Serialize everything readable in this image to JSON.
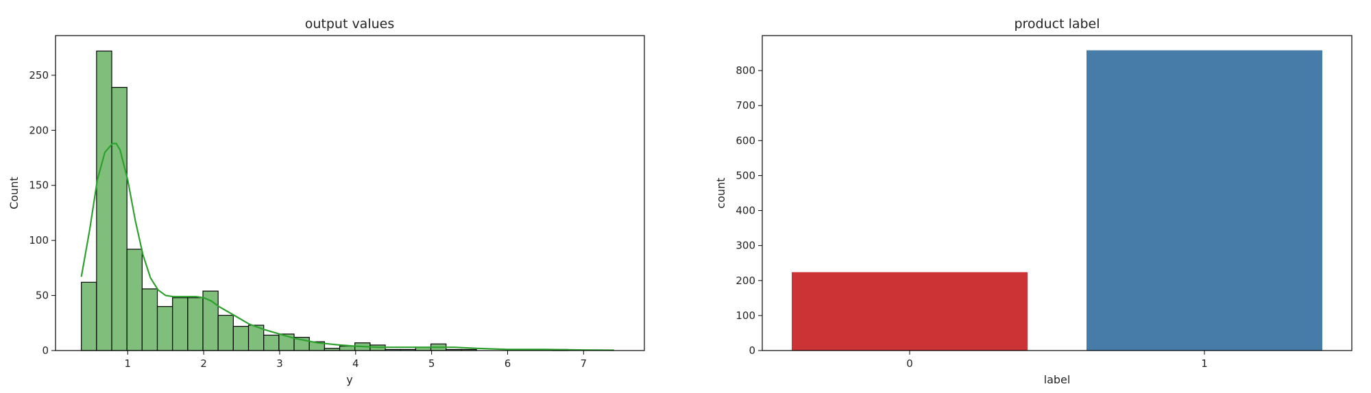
{
  "chart_data": [
    {
      "type": "bar",
      "subtype": "histogram",
      "title": "output values",
      "xlabel": "y",
      "ylabel": "Count",
      "xlim": [
        0.05,
        7.8
      ],
      "ylim": [
        0,
        286
      ],
      "xticks": [
        "1",
        "2",
        "3",
        "4",
        "5",
        "6",
        "7"
      ],
      "yticks": [
        "0",
        "50",
        "100",
        "150",
        "200",
        "250"
      ],
      "bar_color": "#7fbf7b",
      "edge_color": "#000000",
      "kde_color": "#2ca02c",
      "bins": [
        {
          "x0": 0.39,
          "x1": 0.59,
          "count": 62
        },
        {
          "x0": 0.59,
          "x1": 0.79,
          "count": 272
        },
        {
          "x0": 0.79,
          "x1": 0.99,
          "count": 239
        },
        {
          "x0": 0.99,
          "x1": 1.19,
          "count": 92
        },
        {
          "x0": 1.19,
          "x1": 1.39,
          "count": 56
        },
        {
          "x0": 1.39,
          "x1": 1.59,
          "count": 40
        },
        {
          "x0": 1.59,
          "x1": 1.79,
          "count": 48
        },
        {
          "x0": 1.79,
          "x1": 1.99,
          "count": 48
        },
        {
          "x0": 1.99,
          "x1": 2.19,
          "count": 54
        },
        {
          "x0": 2.19,
          "x1": 2.39,
          "count": 32
        },
        {
          "x0": 2.39,
          "x1": 2.59,
          "count": 22
        },
        {
          "x0": 2.59,
          "x1": 2.79,
          "count": 23
        },
        {
          "x0": 2.79,
          "x1": 2.99,
          "count": 14
        },
        {
          "x0": 2.99,
          "x1": 3.19,
          "count": 15
        },
        {
          "x0": 3.19,
          "x1": 3.39,
          "count": 12
        },
        {
          "x0": 3.39,
          "x1": 3.59,
          "count": 8
        },
        {
          "x0": 3.59,
          "x1": 3.79,
          "count": 2
        },
        {
          "x0": 3.79,
          "x1": 3.99,
          "count": 4
        },
        {
          "x0": 3.99,
          "x1": 4.19,
          "count": 7
        },
        {
          "x0": 4.19,
          "x1": 4.39,
          "count": 5
        },
        {
          "x0": 4.39,
          "x1": 4.59,
          "count": 1
        },
        {
          "x0": 4.59,
          "x1": 4.79,
          "count": 1
        },
        {
          "x0": 4.79,
          "x1": 4.99,
          "count": 3
        },
        {
          "x0": 4.99,
          "x1": 5.19,
          "count": 6
        },
        {
          "x0": 5.19,
          "x1": 5.39,
          "count": 1
        },
        {
          "x0": 5.39,
          "x1": 5.59,
          "count": 1
        },
        {
          "x0": 6.59,
          "x1": 6.79,
          "count": 1
        }
      ],
      "kde": {
        "x": [
          0.39,
          0.5,
          0.6,
          0.7,
          0.8,
          0.85,
          0.9,
          1.0,
          1.1,
          1.2,
          1.3,
          1.4,
          1.5,
          1.6,
          1.7,
          1.8,
          1.9,
          2.0,
          2.1,
          2.2,
          2.4,
          2.6,
          2.8,
          3.0,
          3.2,
          3.5,
          3.8,
          4.0,
          4.3,
          4.6,
          5.0,
          5.3,
          5.6,
          6.0,
          6.5,
          7.0,
          7.4
        ],
        "y": [
          67,
          110,
          155,
          180,
          188,
          188,
          182,
          155,
          118,
          87,
          66,
          55,
          50,
          49,
          49,
          49,
          49,
          48,
          45,
          40,
          32,
          24,
          19,
          15,
          11,
          7,
          5,
          4,
          3,
          3,
          3,
          3,
          2,
          1,
          1,
          0.5,
          0.3
        ]
      }
    },
    {
      "type": "bar",
      "title": "product label",
      "xlabel": "label",
      "ylabel": "count",
      "categories": [
        "0",
        "1"
      ],
      "values": [
        224,
        858
      ],
      "colors": [
        "#cb3335",
        "#477ca8"
      ],
      "ylim": [
        0,
        900
      ],
      "yticks": [
        "0",
        "100",
        "200",
        "300",
        "400",
        "500",
        "600",
        "700",
        "800"
      ]
    }
  ]
}
